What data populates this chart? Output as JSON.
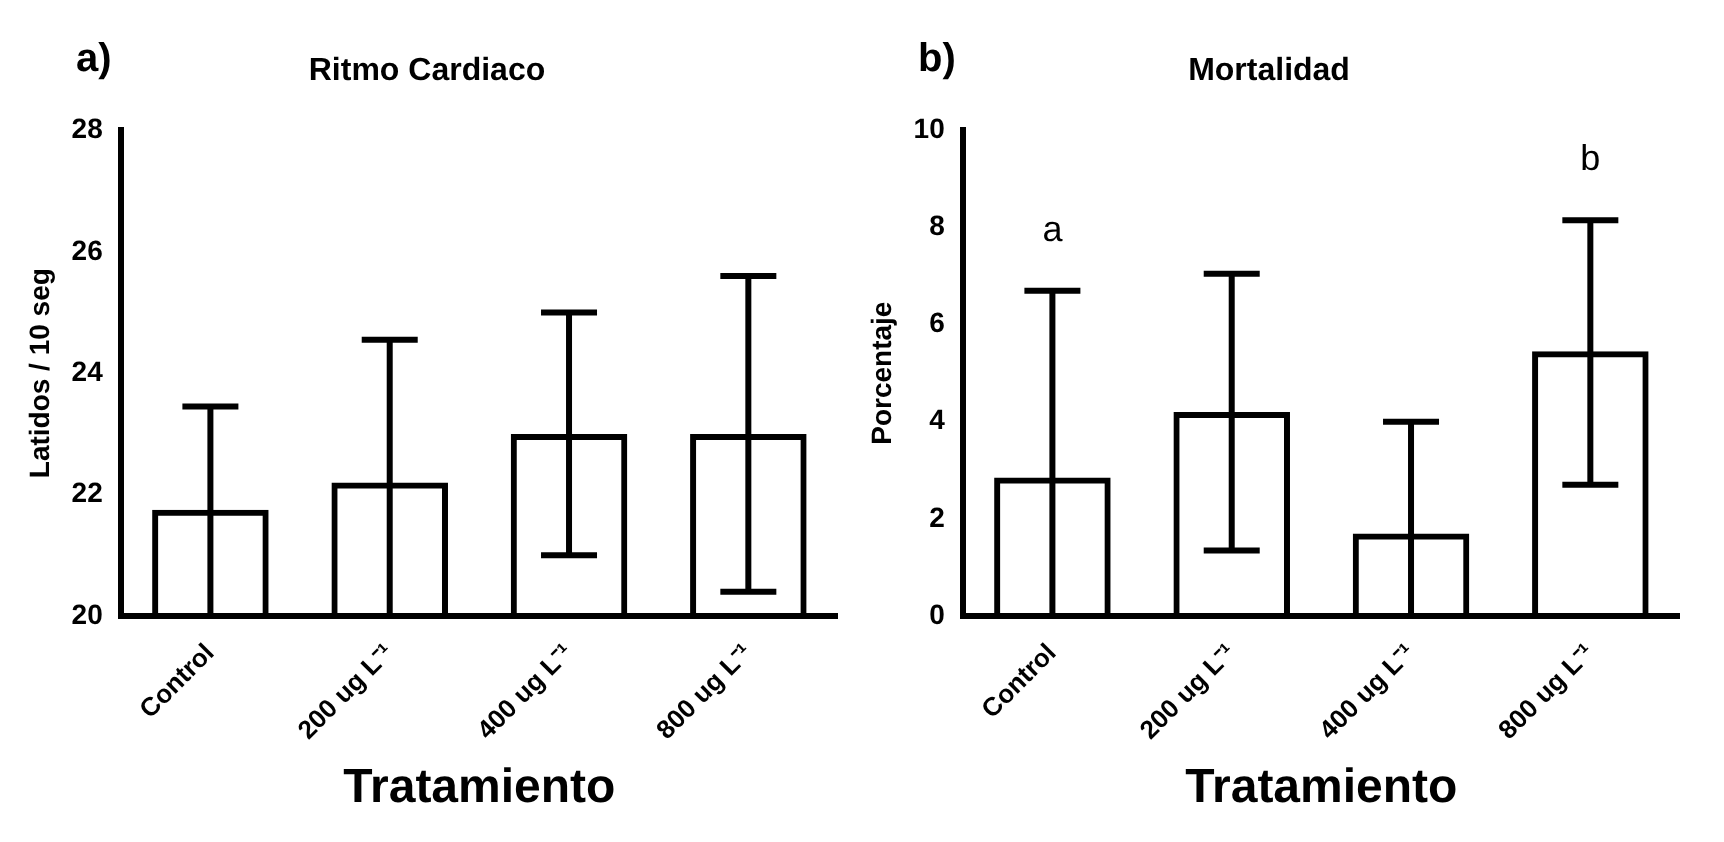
{
  "chart_data": [
    {
      "type": "bar",
      "title": "Ritmo Cardiaco",
      "xlabel": "Tratamiento",
      "ylabel": "Latidos / 10 seg",
      "annotations": [
        "a)"
      ],
      "categories": [
        "Control",
        "200 ug L⁻¹",
        "400 ug L⁻¹",
        "800 ug L⁻¹"
      ],
      "series": [
        {
          "color": "#000000",
          "values": [
            21.75,
            22.2,
            23,
            23
          ],
          "errors": [
            [
              20,
              23.45
            ],
            [
              20,
              24.55
            ],
            [
              21,
              25
            ],
            [
              20.4,
              25.6
            ]
          ]
        }
      ],
      "ylim": [
        20,
        28
      ],
      "yticks": [
        20,
        22,
        24,
        26,
        28
      ],
      "grid": false,
      "legend": false
    },
    {
      "type": "bar",
      "title": "Mortalidad",
      "xlabel": "Tratamiento",
      "ylabel": "Porcentaje",
      "annotations": [
        "b)",
        {
          "text": "a",
          "x": "Control",
          "y": 6.7
        },
        {
          "text": "b",
          "x": "800 ug L⁻¹",
          "y": 8.15
        }
      ],
      "categories": [
        "Control",
        "200 ug L⁻¹",
        "400 ug L⁻¹",
        "800 ug L⁻¹"
      ],
      "series": [
        {
          "color": "#000000",
          "values": [
            2.85,
            4.2,
            1.7,
            5.45
          ],
          "errors": [
            [
              0,
              6.7
            ],
            [
              1.35,
              7.05
            ],
            [
              0,
              4.0
            ],
            [
              2.7,
              8.15
            ]
          ]
        }
      ],
      "ylim": [
        0,
        10
      ],
      "yticks": [
        0,
        2,
        4,
        6,
        8,
        10
      ],
      "grid": false,
      "legend": false
    }
  ]
}
